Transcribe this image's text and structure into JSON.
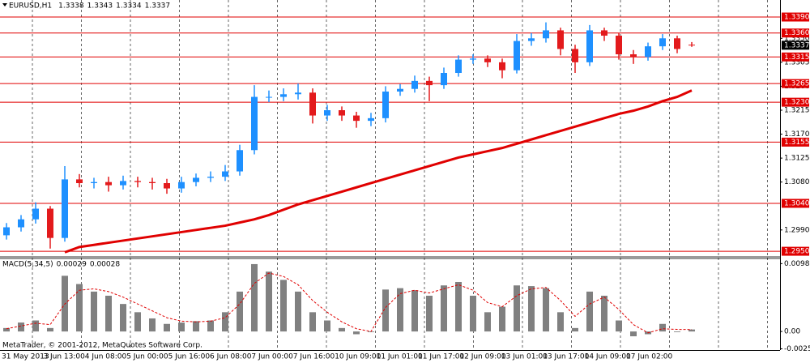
{
  "chart_data": [
    {
      "type": "candlestick",
      "title": "EURUSD,H1",
      "open": [
        1.298,
        1.2995,
        1.301,
        1.303,
        1.2975,
        1.3085,
        1.3078,
        1.308,
        1.3074,
        1.3082,
        1.308,
        1.3078,
        1.3068,
        1.308,
        1.3088,
        1.309,
        1.31,
        1.314,
        1.324,
        1.324,
        1.3245,
        1.3248,
        1.3205,
        1.3215,
        1.3205,
        1.3195,
        1.32,
        1.325,
        1.3255,
        1.327,
        1.3262,
        1.3285,
        1.331,
        1.3312,
        1.3305,
        1.329,
        1.3345,
        1.335,
        1.3365,
        1.333,
        1.3305,
        1.3365,
        1.3355,
        1.332,
        1.3315,
        1.3335,
        1.335,
        1.3338
      ],
      "high": [
        1.3003,
        1.3018,
        1.3042,
        1.3035,
        1.311,
        1.3095,
        1.3088,
        1.309,
        1.3092,
        1.309,
        1.3088,
        1.3086,
        1.309,
        1.3096,
        1.31,
        1.3112,
        1.315,
        1.3262,
        1.3252,
        1.3256,
        1.3265,
        1.3256,
        1.3225,
        1.3222,
        1.3212,
        1.321,
        1.326,
        1.3264,
        1.328,
        1.3278,
        1.3295,
        1.3318,
        1.332,
        1.3318,
        1.3312,
        1.3358,
        1.336,
        1.338,
        1.337,
        1.3338,
        1.3375,
        1.337,
        1.336,
        1.3328,
        1.3342,
        1.3358,
        1.3355,
        1.3343
      ],
      "low": [
        1.2972,
        1.2987,
        1.3002,
        1.2955,
        1.2968,
        1.307,
        1.3068,
        1.3062,
        1.3066,
        1.307,
        1.3066,
        1.3058,
        1.306,
        1.3072,
        1.308,
        1.3082,
        1.3092,
        1.3132,
        1.323,
        1.3232,
        1.3235,
        1.319,
        1.3195,
        1.3195,
        1.3182,
        1.3185,
        1.3192,
        1.3242,
        1.3248,
        1.3232,
        1.3255,
        1.3278,
        1.3302,
        1.3296,
        1.3275,
        1.3284,
        1.3336,
        1.3342,
        1.3318,
        1.3285,
        1.3298,
        1.3345,
        1.331,
        1.3302,
        1.3308,
        1.3328,
        1.3322,
        1.3334
      ],
      "close": [
        1.2995,
        1.301,
        1.303,
        1.2975,
        1.3085,
        1.3078,
        1.308,
        1.3074,
        1.3082,
        1.308,
        1.3078,
        1.3068,
        1.308,
        1.3088,
        1.309,
        1.31,
        1.314,
        1.324,
        1.324,
        1.3245,
        1.3248,
        1.3205,
        1.3215,
        1.3205,
        1.3195,
        1.32,
        1.325,
        1.3255,
        1.327,
        1.3262,
        1.3285,
        1.331,
        1.3312,
        1.3305,
        1.329,
        1.3345,
        1.335,
        1.3365,
        1.333,
        1.3305,
        1.3365,
        1.3355,
        1.332,
        1.3315,
        1.3335,
        1.335,
        1.333,
        1.3337
      ],
      "up_color": "#1e90ff",
      "down_color": "#e31a1c",
      "ma": {
        "color": "#e00000",
        "values": [
          null,
          null,
          null,
          null,
          1.2948,
          1.2958,
          1.2962,
          1.2966,
          1.297,
          1.2974,
          1.2978,
          1.2982,
          1.2986,
          1.299,
          1.2994,
          1.2998,
          1.3004,
          1.301,
          1.3018,
          1.3028,
          1.3038,
          1.3046,
          1.3054,
          1.3062,
          1.307,
          1.3078,
          1.3086,
          1.3094,
          1.3102,
          1.311,
          1.3118,
          1.3126,
          1.3132,
          1.3138,
          1.3144,
          1.3152,
          1.316,
          1.3168,
          1.3176,
          1.3184,
          1.3192,
          1.32,
          1.3208,
          1.3214,
          1.3222,
          1.3232,
          1.324,
          1.3252
        ]
      },
      "levels": {
        "color": "#e00000",
        "values": [
          {
            "value": 1.339,
            "label": "1.3390"
          },
          {
            "value": 1.336,
            "label": "1.3360"
          },
          1.3315,
          1.3265,
          {
            "value": 1.323,
            "label": "1.3230"
          },
          1.3155,
          {
            "value": 1.304,
            "label": "1.3040"
          },
          {
            "value": 1.295,
            "label": "1.2950"
          }
        ]
      },
      "ylim": [
        1.2941,
        1.3422
      ],
      "yticks": [
        {
          "value": 1.335,
          "label": "1.3350"
        },
        1.3305,
        {
          "value": 1.326,
          "label": "1.3260"
        },
        1.3215,
        {
          "value": 1.317,
          "label": "1.3170"
        },
        1.3125,
        {
          "value": 1.308,
          "label": "1.3080"
        },
        {
          "value": 1.299,
          "label": "1.2990"
        }
      ],
      "x_labels": [
        "31 May 2013",
        "3 Jun 13:00",
        "4 Jun 08:00",
        "5 Jun 00:00",
        "5 Jun 16:00",
        "6 Jun 08:00",
        "7 Jun 00:00",
        "7 Jun 16:00",
        "10 Jun 09:00",
        "11 Jun 01:00",
        "11 Jun 17:00",
        "12 Jun 09:00",
        "13 Jun 01:00",
        "13 Jun 17:00",
        "14 Jun 09:00",
        "17 Jun 02:00"
      ]
    },
    {
      "type": "macd",
      "title": "MACD(5,34,5)",
      "color": "#808080",
      "values": [
        0.0005,
        0.0013,
        0.0016,
        0.0005,
        0.0081,
        0.0069,
        0.0058,
        0.0052,
        0.004,
        0.0028,
        0.0019,
        0.0011,
        0.0013,
        0.0015,
        0.0016,
        0.0028,
        0.0058,
        0.0098,
        0.0087,
        0.0075,
        0.0058,
        0.0028,
        0.0016,
        0.0005,
        -0.0004,
        -0.0001,
        0.0061,
        0.0063,
        0.006,
        0.0052,
        0.0067,
        0.0072,
        0.0052,
        0.0028,
        0.0036,
        0.0067,
        0.0066,
        0.0063,
        0.0028,
        0.0005,
        0.0058,
        0.0052,
        0.0016,
        -0.0007,
        -0.0004,
        0.0011,
        -0.0001,
        0.00029
      ],
      "signal": {
        "color": "#e00000",
        "values": [
          0.0004,
          0.0008,
          0.0012,
          0.001,
          0.004,
          0.006,
          0.0062,
          0.0058,
          0.005,
          0.004,
          0.003,
          0.002,
          0.0015,
          0.0014,
          0.0015,
          0.002,
          0.004,
          0.007,
          0.0085,
          0.008,
          0.0068,
          0.0045,
          0.0028,
          0.0014,
          0.0004,
          0.0,
          0.0035,
          0.0055,
          0.006,
          0.0056,
          0.0062,
          0.0068,
          0.006,
          0.0042,
          0.0036,
          0.0052,
          0.0062,
          0.0064,
          0.0045,
          0.0022,
          0.004,
          0.005,
          0.0032,
          0.001,
          -0.0002,
          0.0004,
          0.0003,
          0.00028
        ]
      },
      "ylim": [
        -0.0027,
        0.0105
      ],
      "yticks": [
        0.00987,
        {
          "value": 0,
          "label": "0.00"
        },
        -0.00252
      ],
      "annotation": "MetaTrader, © 2001-2012, MetaQuotes Software Corp."
    }
  ]
}
